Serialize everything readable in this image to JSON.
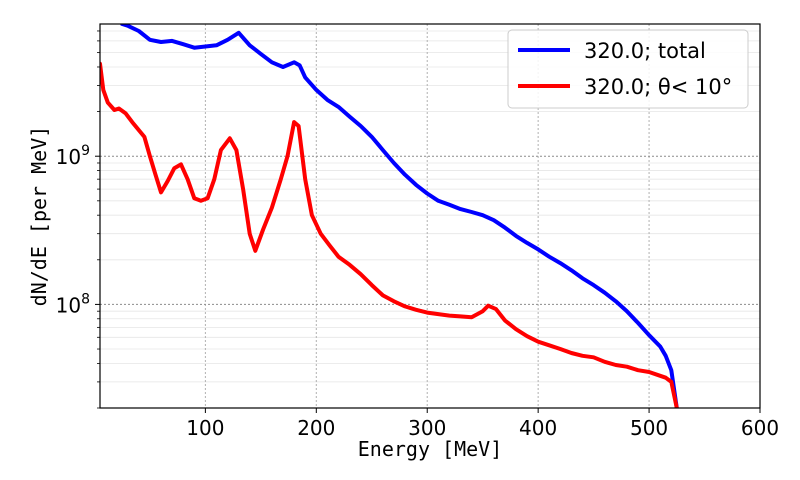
{
  "chart_data": {
    "type": "line",
    "title": "",
    "xlabel": "Energy [MeV]",
    "ylabel": "dN/dE [per MeV]",
    "xlim": [
      5,
      600
    ],
    "ylim": [
      20000000,
      7800000000
    ],
    "yscale": "log",
    "grid": true,
    "legend_position": "top-right",
    "x_ticks": [
      100,
      200,
      300,
      400,
      500,
      600
    ],
    "x_tick_labels": [
      "100",
      "200",
      "300",
      "400",
      "500",
      "600"
    ],
    "y_ticks": [
      100000000,
      1000000000
    ],
    "y_tick_labels": [
      {
        "base": "10",
        "exp": "8"
      },
      {
        "base": "10",
        "exp": "9"
      }
    ],
    "series": [
      {
        "name": "320.0; total",
        "color": "#0000ff",
        "points": [
          [
            25,
            7800000000
          ],
          [
            30,
            7600000000
          ],
          [
            40,
            7000000000
          ],
          [
            50,
            6100000000
          ],
          [
            60,
            5900000000
          ],
          [
            70,
            6000000000
          ],
          [
            80,
            5700000000
          ],
          [
            90,
            5400000000
          ],
          [
            100,
            5500000000
          ],
          [
            110,
            5600000000
          ],
          [
            120,
            6100000000
          ],
          [
            130,
            6800000000
          ],
          [
            140,
            5600000000
          ],
          [
            150,
            4900000000
          ],
          [
            160,
            4300000000
          ],
          [
            170,
            4000000000
          ],
          [
            180,
            4300000000
          ],
          [
            185,
            4100000000
          ],
          [
            190,
            3400000000
          ],
          [
            200,
            2800000000
          ],
          [
            210,
            2400000000
          ],
          [
            220,
            2150000000
          ],
          [
            230,
            1850000000
          ],
          [
            240,
            1600000000
          ],
          [
            250,
            1350000000
          ],
          [
            260,
            1100000000
          ],
          [
            270,
            900000000
          ],
          [
            280,
            750000000
          ],
          [
            290,
            640000000
          ],
          [
            300,
            560000000
          ],
          [
            310,
            500000000
          ],
          [
            320,
            470000000
          ],
          [
            330,
            440000000
          ],
          [
            340,
            420000000
          ],
          [
            350,
            400000000
          ],
          [
            360,
            370000000
          ],
          [
            370,
            330000000
          ],
          [
            380,
            290000000
          ],
          [
            390,
            260000000
          ],
          [
            400,
            235000000
          ],
          [
            410,
            210000000
          ],
          [
            420,
            190000000
          ],
          [
            430,
            170000000
          ],
          [
            440,
            150000000
          ],
          [
            450,
            135000000
          ],
          [
            460,
            120000000
          ],
          [
            470,
            105000000
          ],
          [
            480,
            90000000
          ],
          [
            490,
            75000000
          ],
          [
            500,
            62000000
          ],
          [
            510,
            52000000
          ],
          [
            515,
            45000000
          ],
          [
            520,
            36000000
          ],
          [
            525,
            20000000
          ]
        ]
      },
      {
        "name": "320.0; θ< 10°",
        "color": "#ff0000",
        "points": [
          [
            5,
            4200000000
          ],
          [
            8,
            2800000000
          ],
          [
            12,
            2300000000
          ],
          [
            18,
            2050000000
          ],
          [
            22,
            2100000000
          ],
          [
            28,
            1950000000
          ],
          [
            34,
            1700000000
          ],
          [
            40,
            1500000000
          ],
          [
            45,
            1350000000
          ],
          [
            50,
            1000000000
          ],
          [
            55,
            750000000
          ],
          [
            60,
            570000000
          ],
          [
            66,
            680000000
          ],
          [
            72,
            830000000
          ],
          [
            78,
            880000000
          ],
          [
            84,
            700000000
          ],
          [
            90,
            520000000
          ],
          [
            96,
            500000000
          ],
          [
            102,
            520000000
          ],
          [
            108,
            700000000
          ],
          [
            114,
            1100000000
          ],
          [
            122,
            1320000000
          ],
          [
            128,
            1100000000
          ],
          [
            134,
            600000000
          ],
          [
            140,
            300000000
          ],
          [
            145,
            230000000
          ],
          [
            152,
            320000000
          ],
          [
            160,
            450000000
          ],
          [
            168,
            700000000
          ],
          [
            174,
            1000000000
          ],
          [
            180,
            1700000000
          ],
          [
            184,
            1600000000
          ],
          [
            190,
            700000000
          ],
          [
            196,
            400000000
          ],
          [
            204,
            300000000
          ],
          [
            212,
            250000000
          ],
          [
            220,
            210000000
          ],
          [
            230,
            185000000
          ],
          [
            240,
            160000000
          ],
          [
            250,
            135000000
          ],
          [
            260,
            115000000
          ],
          [
            270,
            105000000
          ],
          [
            280,
            97000000
          ],
          [
            290,
            92000000
          ],
          [
            300,
            88000000
          ],
          [
            310,
            86000000
          ],
          [
            320,
            84000000
          ],
          [
            330,
            83000000
          ],
          [
            340,
            82000000
          ],
          [
            350,
            90000000
          ],
          [
            355,
            98000000
          ],
          [
            362,
            93000000
          ],
          [
            370,
            78000000
          ],
          [
            380,
            68000000
          ],
          [
            390,
            61000000
          ],
          [
            400,
            56000000
          ],
          [
            410,
            53000000
          ],
          [
            420,
            50000000
          ],
          [
            430,
            47000000
          ],
          [
            440,
            45000000
          ],
          [
            450,
            44000000
          ],
          [
            460,
            41000000
          ],
          [
            470,
            39000000
          ],
          [
            480,
            38000000
          ],
          [
            490,
            36000000
          ],
          [
            500,
            35000000
          ],
          [
            510,
            33000000
          ],
          [
            515,
            32000000
          ],
          [
            520,
            30000000
          ],
          [
            525,
            20000000
          ]
        ]
      }
    ]
  }
}
